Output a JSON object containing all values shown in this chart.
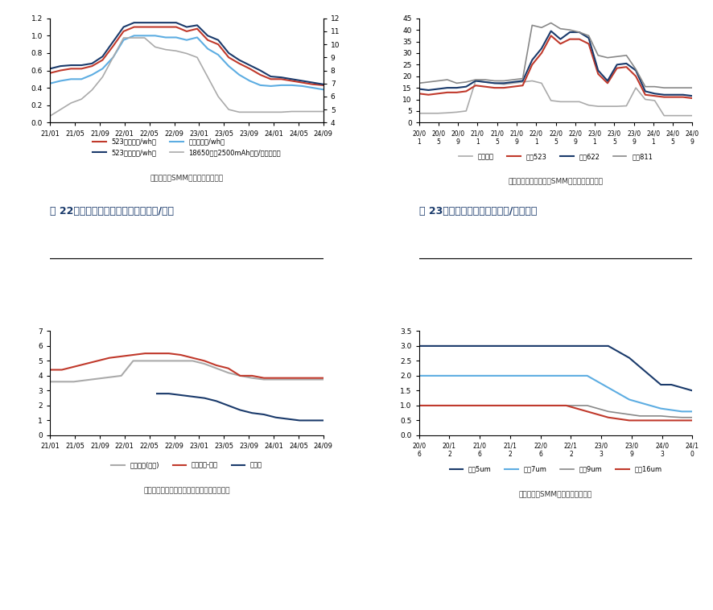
{
  "fig_title1": "图 22：电池负极材料价格走势（万元/吨）",
  "fig_title2": "图 23：部分隔膜价格走势（元/平方米）",
  "source1": "数据来源：SMM，东吴证券研究所",
  "source2": "数据来源：鑫椤资讯、SMM，东吴证券研究所",
  "source3": "数据来源：鑫椤资讯、百川，东吴证券研究所",
  "source4": "数据来源：SMM，东吴证券研究所",
  "chart1": {
    "xticks": [
      "21/01",
      "21/05",
      "21/09",
      "22/01",
      "22/05",
      "22/09",
      "23/01",
      "23/05",
      "23/09",
      "24/01",
      "24/05",
      "24/09"
    ],
    "ylim_left": [
      0.0,
      1.2
    ],
    "ylim_right": [
      4,
      12
    ],
    "yticks_left": [
      0.0,
      0.2,
      0.4,
      0.6,
      0.8,
      1.0,
      1.2
    ],
    "yticks_right": [
      4,
      5,
      6,
      7,
      8,
      9,
      10,
      11,
      12
    ],
    "series": {
      "523方形（元/wh）": {
        "color": "#c0392b",
        "axis": "left",
        "data": [
          0.57,
          0.6,
          0.62,
          0.62,
          0.65,
          0.72,
          0.88,
          1.05,
          1.1,
          1.1,
          1.1,
          1.1,
          1.1,
          1.05,
          1.08,
          0.95,
          0.9,
          0.75,
          0.68,
          0.62,
          0.55,
          0.5,
          0.5,
          0.48,
          0.46,
          0.44,
          0.43
        ]
      },
      "523软包（元/wh）": {
        "color": "#1a3a6b",
        "axis": "left",
        "data": [
          0.62,
          0.65,
          0.66,
          0.66,
          0.68,
          0.76,
          0.93,
          1.1,
          1.15,
          1.15,
          1.15,
          1.15,
          1.15,
          1.1,
          1.12,
          1.0,
          0.95,
          0.8,
          0.72,
          0.66,
          0.6,
          0.53,
          0.52,
          0.5,
          0.48,
          0.46,
          0.44
        ]
      },
      "方形铁（元/wh）": {
        "color": "#5dade2",
        "axis": "left",
        "data": [
          0.45,
          0.48,
          0.5,
          0.5,
          0.55,
          0.62,
          0.75,
          0.95,
          1.0,
          1.0,
          1.0,
          0.98,
          0.98,
          0.95,
          0.98,
          0.85,
          0.78,
          0.65,
          0.55,
          0.48,
          0.43,
          0.42,
          0.43,
          0.43,
          0.42,
          0.4,
          0.38
        ]
      },
      "18650圆柱2500mAh（元/支，右轴）": {
        "color": "#aaaaaa",
        "axis": "right",
        "data": [
          4.5,
          5.0,
          5.5,
          5.8,
          6.5,
          7.5,
          9.0,
          10.5,
          10.5,
          10.5,
          9.8,
          9.6,
          9.5,
          9.3,
          9.0,
          7.5,
          6.0,
          5.0,
          4.8,
          4.8,
          4.8,
          4.8,
          4.8,
          4.85,
          4.85,
          4.85,
          4.85
        ]
      }
    }
  },
  "chart2": {
    "xticks": [
      "20/01",
      "20/05",
      "20/09",
      "21/01",
      "21/05",
      "21/09",
      "22/01",
      "22/05",
      "22/09",
      "23/01",
      "23/05",
      "23/09",
      "24/01",
      "24/05",
      "24/09"
    ],
    "ylim": [
      0,
      45
    ],
    "yticks": [
      0,
      5,
      10,
      15,
      20,
      25,
      30,
      35,
      40,
      45
    ],
    "series": {
      "磷酸铁锂": {
        "color": "#aaaaaa",
        "data": [
          4.0,
          4.0,
          4.0,
          4.2,
          4.5,
          5.0,
          18.0,
          17.5,
          17.0,
          16.5,
          17.0,
          17.5,
          18.0,
          17.0,
          9.5,
          9.0,
          9.0,
          9.0,
          7.5,
          7.0,
          7.0,
          7.0,
          7.2,
          15.0,
          10.0,
          9.5,
          3.0,
          3.0,
          3.0,
          3.0
        ]
      },
      "三元523": {
        "color": "#c0392b",
        "data": [
          12.5,
          12.0,
          12.5,
          13.0,
          13.0,
          13.5,
          16.0,
          15.5,
          15.0,
          15.0,
          15.5,
          16.0,
          25.0,
          30.0,
          37.5,
          34.0,
          36.0,
          36.0,
          34.0,
          21.0,
          17.0,
          23.5,
          24.0,
          20.0,
          12.0,
          11.5,
          11.0,
          11.0,
          11.0,
          10.5
        ]
      },
      "三元622": {
        "color": "#1a3a6b",
        "data": [
          14.5,
          14.0,
          14.5,
          15.0,
          15.0,
          15.5,
          18.0,
          17.5,
          17.0,
          17.0,
          17.5,
          18.0,
          27.0,
          32.0,
          39.5,
          36.0,
          39.0,
          39.0,
          36.5,
          22.5,
          18.0,
          25.0,
          25.5,
          22.5,
          13.5,
          12.5,
          12.0,
          12.0,
          12.0,
          11.5
        ]
      },
      "三元811": {
        "color": "#888888",
        "data": [
          17.0,
          17.5,
          18.0,
          18.5,
          17.0,
          17.5,
          18.5,
          18.5,
          18.0,
          18.0,
          18.5,
          19.0,
          42.0,
          41.0,
          43.0,
          40.5,
          40.0,
          39.0,
          37.5,
          29.0,
          28.0,
          28.5,
          29.0,
          23.0,
          15.5,
          15.5,
          15.0,
          15.0,
          15.0,
          15.0
        ]
      }
    }
  },
  "chart3": {
    "xticks": [
      "21/01",
      "21/05",
      "21/09",
      "22/01",
      "22/05",
      "22/09",
      "23/01",
      "23/05",
      "23/09",
      "24/01",
      "24/05",
      "24/09"
    ],
    "ylim": [
      0,
      7
    ],
    "yticks": [
      0,
      1,
      2,
      3,
      4,
      5,
      6,
      7
    ],
    "series": {
      "天然石墨(中端)": {
        "color": "#aaaaaa",
        "data": [
          3.6,
          3.6,
          3.6,
          3.7,
          3.8,
          3.9,
          4.0,
          5.0,
          5.0,
          5.0,
          5.0,
          5.0,
          5.0,
          4.8,
          4.5,
          4.2,
          4.0,
          3.85,
          3.75,
          3.75,
          3.75,
          3.75,
          3.75,
          3.75
        ]
      },
      "人造负极-百川": {
        "color": "#c0392b",
        "data": [
          4.4,
          4.4,
          4.6,
          4.8,
          5.0,
          5.2,
          5.3,
          5.4,
          5.5,
          5.5,
          5.5,
          5.4,
          5.2,
          5.0,
          4.7,
          4.5,
          4.0,
          4.0,
          3.85,
          3.85,
          3.85,
          3.85,
          3.85,
          3.85
        ]
      },
      "石墨化": {
        "color": "#1a3a6b",
        "data": [
          0.0,
          0.0,
          0.0,
          0.0,
          0.0,
          0.0,
          0.0,
          0.0,
          0.0,
          0.0,
          0.0,
          0.0,
          0.0,
          2.8,
          2.8,
          2.7,
          2.6,
          2.5,
          2.3,
          2.0,
          1.7,
          1.5,
          1.4,
          1.2,
          1.1,
          1.0,
          1.0,
          1.0,
          1.0,
          1.0
        ]
      }
    }
  },
  "chart4": {
    "xticks": [
      "20/06",
      "20/1",
      "21/0",
      "21/1",
      "22/0",
      "22/1",
      "23/0",
      "23/0",
      "24/0",
      "24/1"
    ],
    "ylim": [
      0,
      3.5
    ],
    "yticks": [
      0,
      0.5,
      1.0,
      1.5,
      2.0,
      2.5,
      3.0,
      3.5
    ],
    "series": {
      "湿法5um": {
        "color": "#1a3a6b",
        "data": [
          3.0,
          3.0,
          3.0,
          3.0,
          3.0,
          3.0,
          3.0,
          3.0,
          3.0,
          3.0,
          3.0,
          3.0,
          3.0,
          3.0,
          3.0,
          3.0,
          3.0,
          3.0,
          3.0,
          2.8,
          2.6,
          2.3,
          2.0,
          1.7,
          1.7,
          1.6,
          1.5
        ]
      },
      "湿法7um": {
        "color": "#5dade2",
        "data": [
          2.0,
          2.0,
          2.0,
          2.0,
          2.0,
          2.0,
          2.0,
          2.0,
          2.0,
          2.0,
          2.0,
          2.0,
          2.0,
          2.0,
          2.0,
          2.0,
          2.0,
          1.8,
          1.6,
          1.4,
          1.2,
          1.1,
          1.0,
          0.9,
          0.85,
          0.8,
          0.8
        ]
      },
      "湿法9um": {
        "color": "#888888",
        "data": [
          1.0,
          1.0,
          1.0,
          1.0,
          1.0,
          1.0,
          1.0,
          1.0,
          1.0,
          1.0,
          1.0,
          1.0,
          1.0,
          1.0,
          1.0,
          1.0,
          1.0,
          0.9,
          0.8,
          0.75,
          0.7,
          0.65,
          0.65,
          0.65,
          0.62,
          0.6,
          0.6
        ]
      },
      "干法16um": {
        "color": "#c0392b",
        "data": [
          1.0,
          1.0,
          1.0,
          1.0,
          1.0,
          1.0,
          1.0,
          1.0,
          1.0,
          1.0,
          1.0,
          1.0,
          1.0,
          1.0,
          1.0,
          0.9,
          0.8,
          0.7,
          0.6,
          0.55,
          0.5,
          0.5,
          0.5,
          0.5,
          0.5,
          0.5,
          0.5
        ]
      }
    }
  }
}
